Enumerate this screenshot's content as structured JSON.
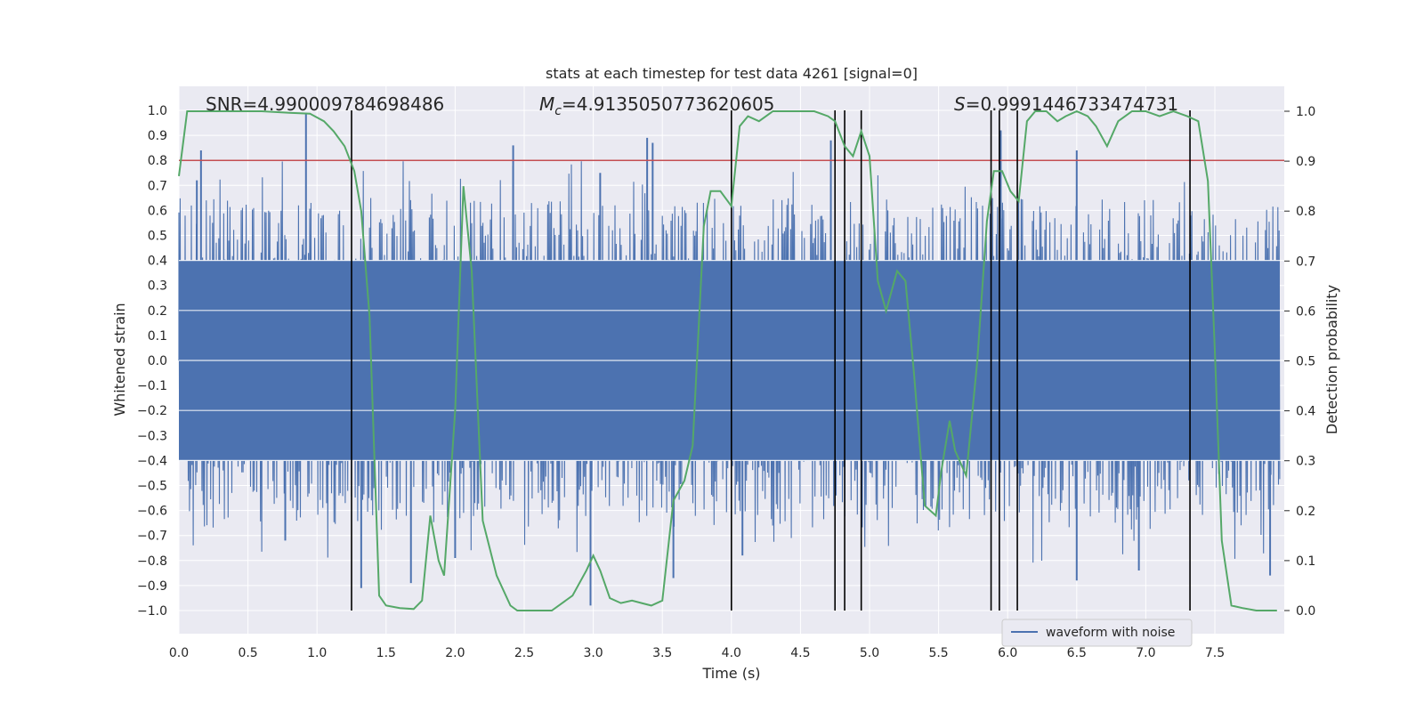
{
  "chart_data": {
    "type": "line",
    "title": "stats at each timestep for test data 4261 [signal=0]",
    "xlabel": "Time (s)",
    "ylabel": "Whitened strain",
    "y2label": "Detection probability",
    "xlim": [
      0,
      8.0
    ],
    "ylim": [
      -1.1,
      1.1
    ],
    "y2lim": [
      -0.0455,
      1.0455
    ],
    "xticks": [
      "0.0",
      "0.5",
      "1.0",
      "1.5",
      "2.0",
      "2.5",
      "3.0",
      "3.5",
      "4.0",
      "4.5",
      "5.0",
      "5.5",
      "6.0",
      "6.5",
      "7.0",
      "7.5"
    ],
    "yticks": [
      "1.0",
      "0.9",
      "0.8",
      "0.7",
      "0.6",
      "0.5",
      "0.4",
      "0.3",
      "0.2",
      "0.1",
      "0.0",
      "-0.1",
      "-0.2",
      "-0.3",
      "-0.4",
      "-0.5",
      "-0.6",
      "-0.7",
      "-0.8",
      "-0.9",
      "-1.0"
    ],
    "y2ticks": [
      "0.0",
      "0.1",
      "0.2",
      "0.3",
      "0.4",
      "0.5",
      "0.6",
      "0.7",
      "0.8",
      "0.9",
      "1.0"
    ],
    "grid": true,
    "background": "#eaeaf2",
    "annotations": {
      "snr": "SNR=4.990009784698486",
      "mc_symbol": "M",
      "mc_sub": "c",
      "mc_value": "=4.9135050773620605",
      "s_symbol": "S",
      "s_value": "=0.9991446733474731"
    },
    "legend": {
      "label": "waveform with noise",
      "position": "lower-right"
    },
    "threshold": {
      "y": 0.8,
      "color": "#c44e52"
    },
    "vlines": {
      "x": [
        1.25,
        4.0,
        4.75,
        4.82,
        4.94,
        5.88,
        5.94,
        6.07,
        7.32
      ],
      "ymin": -1.0,
      "ymax": 1.0,
      "color": "#000000"
    },
    "series": [
      {
        "name": "waveform with noise",
        "axis": "left",
        "color": "#4c72b0",
        "description_envelope": {
          "core_low": -0.4,
          "core_high": 0.4,
          "typical_peak": 0.65,
          "max_peak": 0.99,
          "min_peak": -0.98
        },
        "spikes": [
          {
            "x": 0.92,
            "y": 0.99
          },
          {
            "x": 0.16,
            "y": 0.84
          },
          {
            "x": 0.13,
            "y": 0.72
          },
          {
            "x": 2.42,
            "y": 0.86
          },
          {
            "x": 3.39,
            "y": 0.89
          },
          {
            "x": 3.43,
            "y": 0.87
          },
          {
            "x": 4.72,
            "y": 0.88
          },
          {
            "x": 5.95,
            "y": 0.92
          },
          {
            "x": 6.5,
            "y": 0.84
          },
          {
            "x": 3.05,
            "y": 0.75
          },
          {
            "x": 1.32,
            "y": -0.91
          },
          {
            "x": 1.68,
            "y": -0.89
          },
          {
            "x": 2.0,
            "y": -0.79
          },
          {
            "x": 2.98,
            "y": -0.98
          },
          {
            "x": 3.58,
            "y": -0.87
          },
          {
            "x": 6.5,
            "y": -0.88
          },
          {
            "x": 6.95,
            "y": -0.84
          },
          {
            "x": 7.9,
            "y": -0.86
          },
          {
            "x": 0.77,
            "y": -0.72
          },
          {
            "x": 4.08,
            "y": -0.78
          }
        ]
      },
      {
        "name": "",
        "axis": "right",
        "color": "#55a868",
        "x": [
          0.0,
          0.06,
          0.2,
          0.4,
          0.6,
          0.8,
          0.95,
          1.05,
          1.12,
          1.2,
          1.27,
          1.32,
          1.38,
          1.45,
          1.5,
          1.6,
          1.7,
          1.76,
          1.82,
          1.88,
          1.92,
          2.0,
          2.06,
          2.12,
          2.2,
          2.3,
          2.4,
          2.45,
          2.55,
          2.7,
          2.85,
          2.95,
          3.0,
          3.05,
          3.12,
          3.2,
          3.28,
          3.35,
          3.42,
          3.5,
          3.58,
          3.66,
          3.72,
          3.8,
          3.85,
          3.92,
          4.0,
          4.06,
          4.12,
          4.2,
          4.3,
          4.4,
          4.5,
          4.6,
          4.7,
          4.75,
          4.82,
          4.88,
          4.94,
          5.0,
          5.06,
          5.12,
          5.2,
          5.26,
          5.32,
          5.4,
          5.48,
          5.52,
          5.58,
          5.62,
          5.7,
          5.78,
          5.85,
          5.9,
          5.96,
          6.02,
          6.08,
          6.14,
          6.2,
          6.28,
          6.36,
          6.42,
          6.5,
          6.58,
          6.64,
          6.72,
          6.8,
          6.9,
          7.0,
          7.1,
          7.2,
          7.3,
          7.38,
          7.45,
          7.5,
          7.55,
          7.62,
          7.7,
          7.8,
          7.95
        ],
        "values": [
          0.87,
          1.0,
          1.0,
          1.0,
          1.0,
          0.997,
          0.995,
          0.98,
          0.96,
          0.93,
          0.88,
          0.8,
          0.59,
          0.03,
          0.01,
          0.005,
          0.003,
          0.02,
          0.19,
          0.1,
          0.07,
          0.4,
          0.85,
          0.68,
          0.18,
          0.07,
          0.01,
          0.0,
          0.0,
          0.0,
          0.03,
          0.08,
          0.11,
          0.08,
          0.025,
          0.015,
          0.02,
          0.015,
          0.01,
          0.02,
          0.22,
          0.26,
          0.33,
          0.77,
          0.84,
          0.84,
          0.81,
          0.97,
          0.99,
          0.98,
          1.0,
          1.0,
          1.0,
          1.0,
          0.99,
          0.98,
          0.93,
          0.91,
          0.96,
          0.91,
          0.66,
          0.6,
          0.68,
          0.66,
          0.48,
          0.21,
          0.19,
          0.28,
          0.38,
          0.32,
          0.27,
          0.5,
          0.78,
          0.88,
          0.88,
          0.84,
          0.82,
          0.98,
          1.0,
          1.0,
          0.98,
          0.99,
          1.0,
          0.99,
          0.97,
          0.93,
          0.98,
          1.0,
          1.0,
          0.99,
          1.0,
          0.99,
          0.98,
          0.86,
          0.52,
          0.14,
          0.01,
          0.005,
          0.0,
          0.0
        ]
      }
    ]
  }
}
